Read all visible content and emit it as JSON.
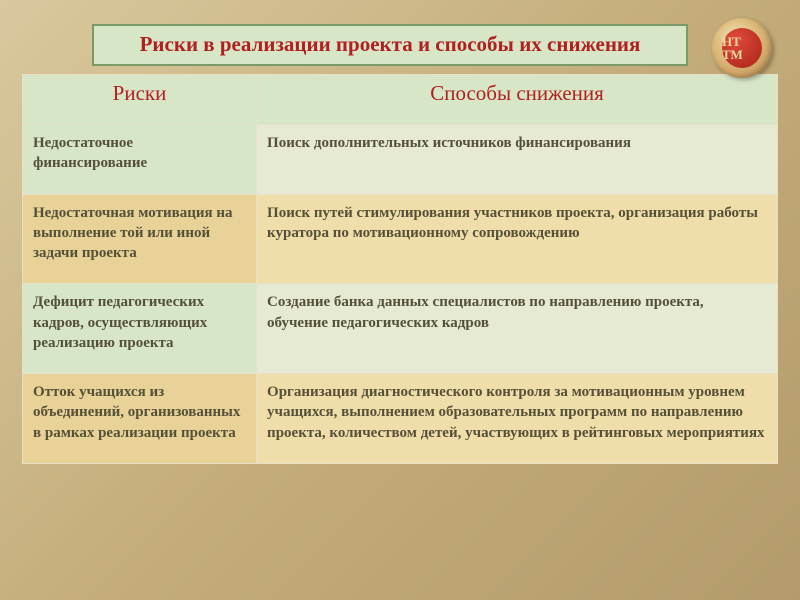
{
  "title": "Риски в реализации проекта и способы их снижения",
  "logo_text": "НТ\nТМ",
  "colors": {
    "title_text": "#b02020",
    "title_bg": "#d8e6c8",
    "title_border": "#7a9a6a",
    "body_text": "#555038",
    "row_a_left": "#d8e6c8",
    "row_a_right": "#e6ead2",
    "row_b_left": "#e8d298",
    "row_b_right": "#f0deaa",
    "cell_border": "#e8e0c8"
  },
  "table": {
    "columns": [
      "Риски",
      "Способы снижения"
    ],
    "col_widths": [
      "31%",
      "69%"
    ],
    "header_fontsize": 21,
    "cell_fontsize": 15,
    "rows": [
      {
        "risk": "Недостаточное финансирование",
        "mitigation": "Поиск дополнительных источников финансирования",
        "shade": "a"
      },
      {
        "risk": "Недостаточная мотивация на выполнение той или иной задачи проекта",
        "mitigation": "Поиск путей стимулирования участников проекта, организация работы куратора по мотивационному сопровождению",
        "shade": "b"
      },
      {
        "risk": "Дефицит педагогических кадров, осуществляющих реализацию проекта",
        "mitigation": "Создание банка данных специалистов по направлению проекта, обучение педагогических кадров",
        "shade": "a"
      },
      {
        "risk": "Отток учащихся из объединений, организованных в рамках реализации проекта",
        "mitigation": "Организация диагностического контроля за мотивационным уровнем учащихся, выполнением образовательных программ по направлению проекта, количеством детей, участвующих в рейтинговых мероприятиях",
        "shade": "b"
      }
    ]
  }
}
